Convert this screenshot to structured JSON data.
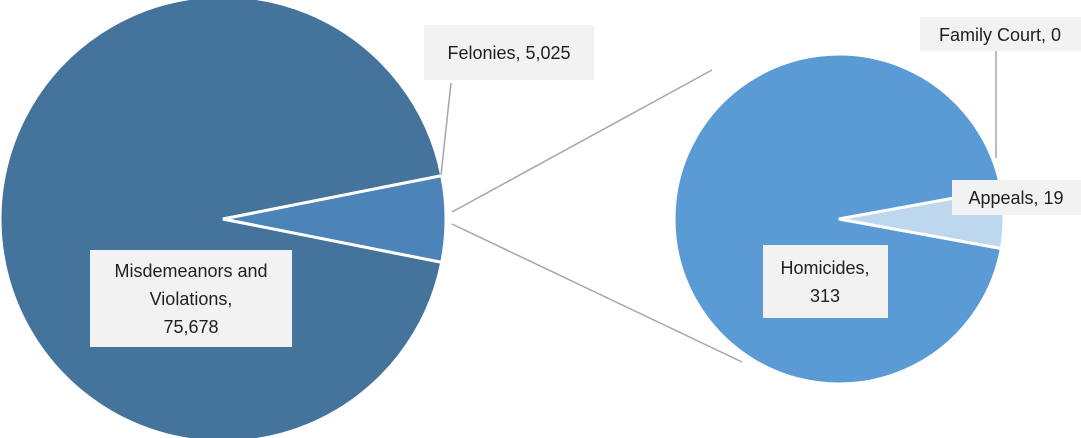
{
  "chart_data": {
    "type": "pie",
    "subtype": "bar-of-pie",
    "title": "",
    "main_pie": {
      "slices": [
        {
          "name": "Misdemeanors and Violations",
          "value": 75678,
          "label_lines": [
            "Misdemeanors and",
            "Violations,",
            "75,678"
          ],
          "color": "#44739b"
        },
        {
          "name": "Felonies",
          "value": 5025,
          "label_lines": [
            "Felonies, 5,025"
          ],
          "color": "#4c84b9"
        }
      ]
    },
    "secondary_pie": {
      "source": "Felonies",
      "slices": [
        {
          "name": "Homicides",
          "value": 313,
          "label_lines": [
            "Homicides,",
            "313"
          ],
          "color": "#5b9bd5"
        },
        {
          "name": "Appeals",
          "value": 19,
          "label_lines": [
            "Appeals, 19"
          ],
          "color": "#bdd7ee"
        },
        {
          "name": "Family Court",
          "value": 0,
          "label_lines": [
            "Family Court, 0"
          ],
          "color": "#bdd7ee"
        }
      ]
    },
    "colors": {
      "label_box": "#f2f2f2",
      "leader_line": "#a6a6a6",
      "slice_border": "#ffffff"
    }
  }
}
